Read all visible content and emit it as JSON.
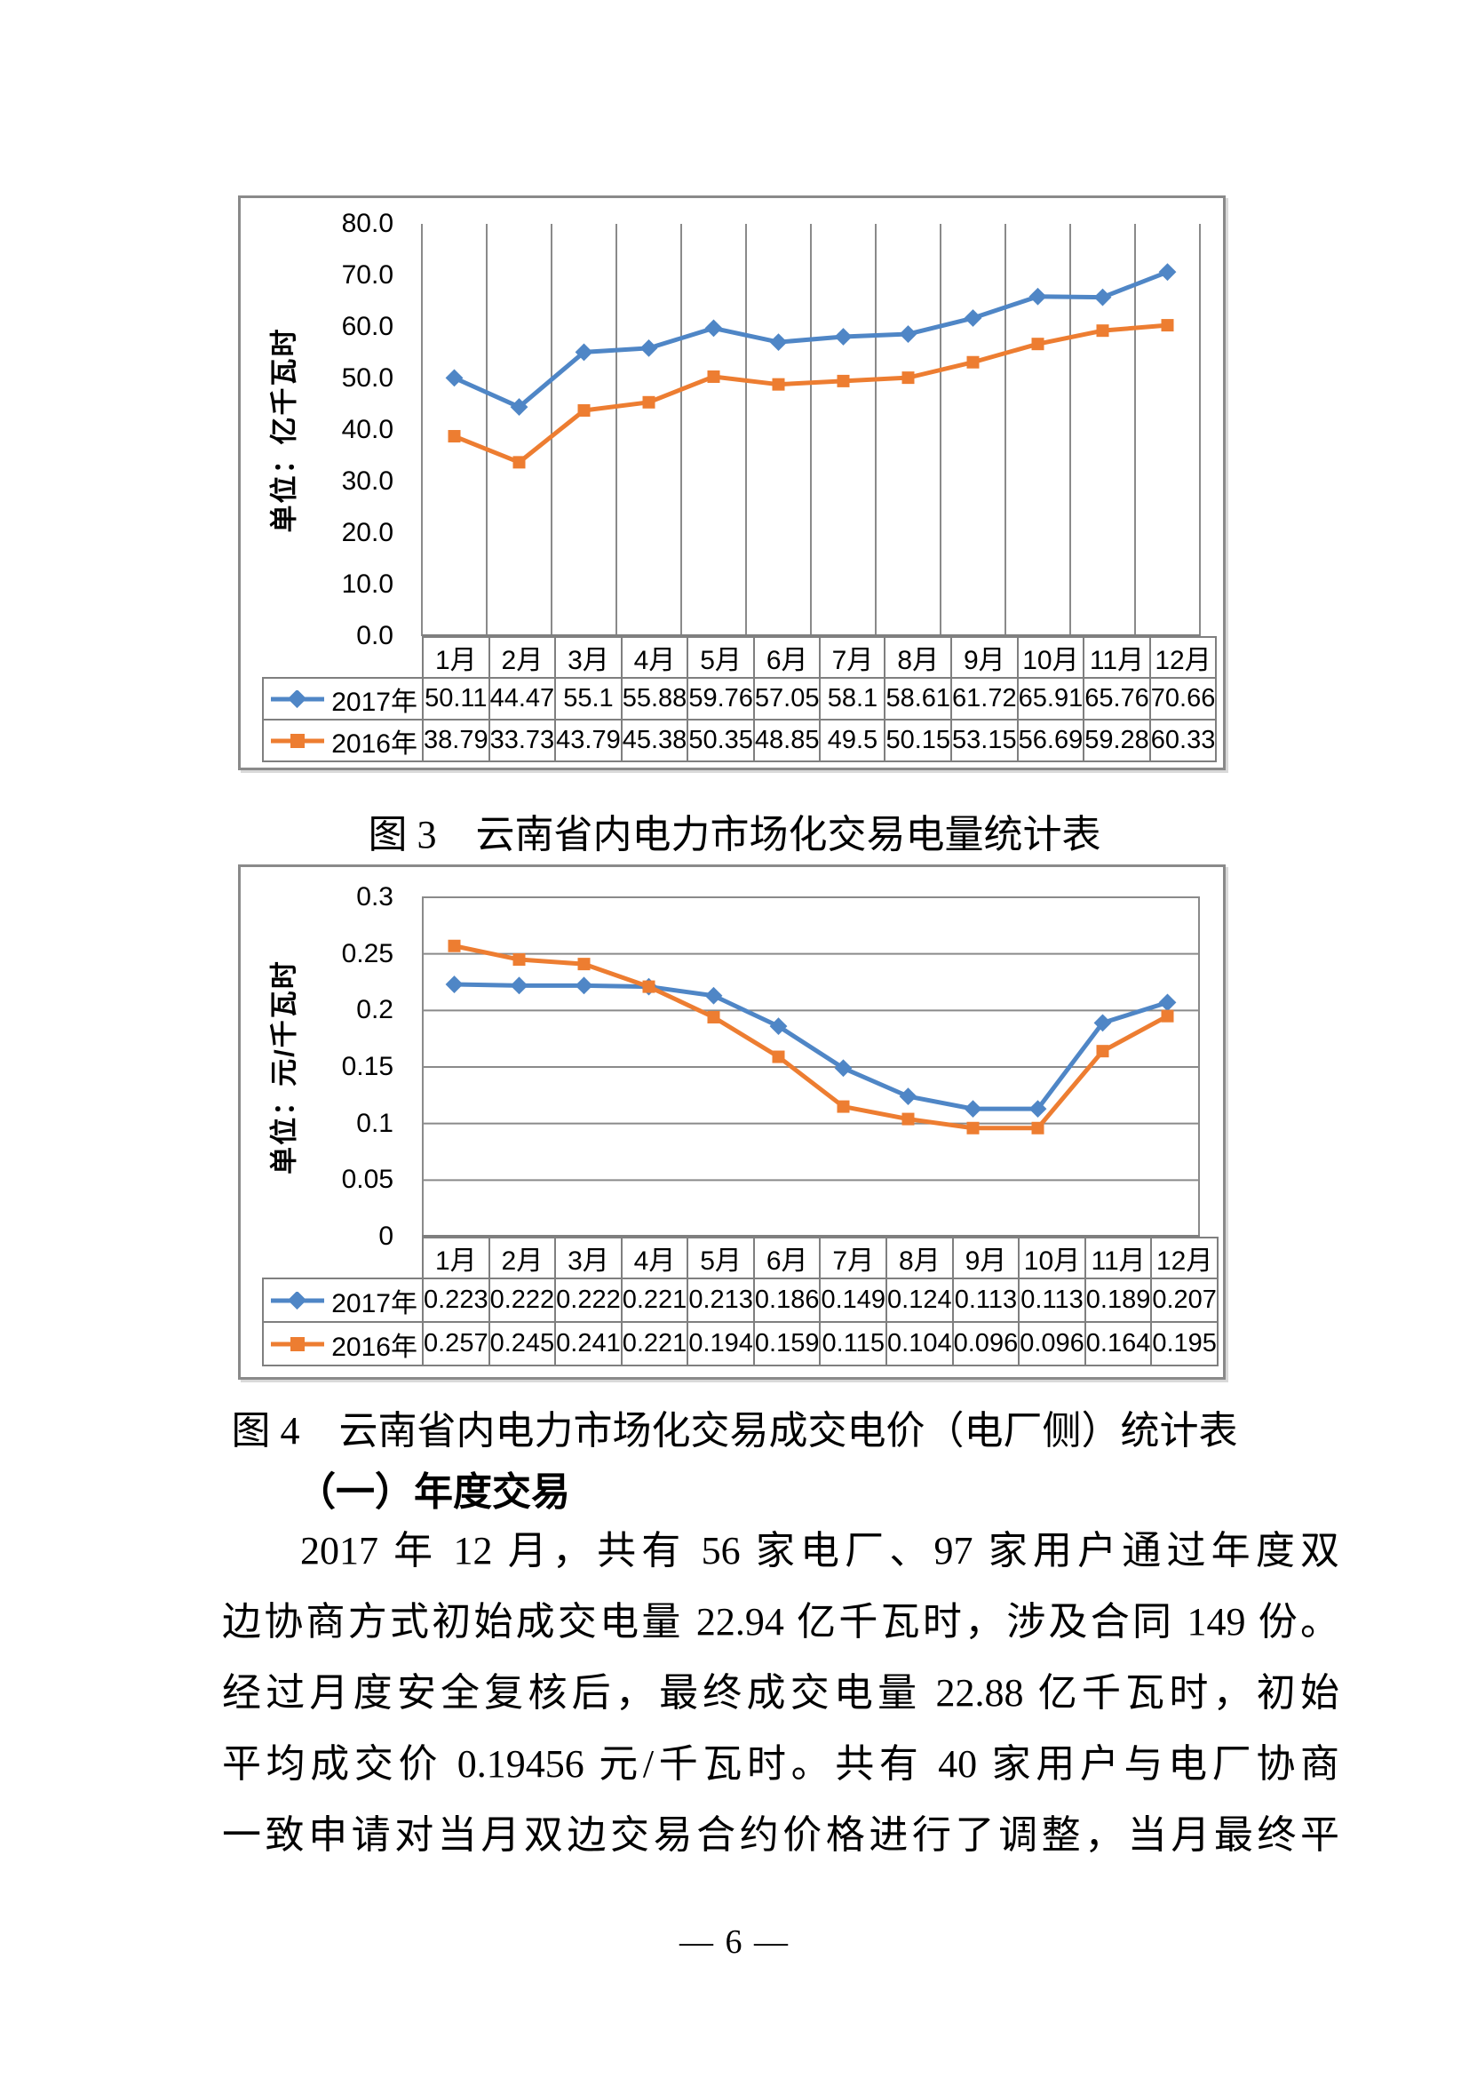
{
  "chart_data": [
    {
      "type": "line",
      "title": "图 3　云南省内电力市场化交易电量统计表",
      "ylabel": "单位：亿千瓦时",
      "categories": [
        "1月",
        "2月",
        "3月",
        "4月",
        "5月",
        "6月",
        "7月",
        "8月",
        "9月",
        "10月",
        "11月",
        "12月"
      ],
      "series": [
        {
          "name": "2017年",
          "color": "#4F86C6",
          "marker": "diamond",
          "values": [
            50.11,
            44.47,
            55.1,
            55.88,
            59.76,
            57.05,
            58.1,
            58.61,
            61.72,
            65.91,
            65.76,
            70.66
          ]
        },
        {
          "name": "2016年",
          "color": "#ED7D31",
          "marker": "square",
          "values": [
            38.79,
            33.73,
            43.79,
            45.38,
            50.35,
            48.85,
            49.5,
            50.15,
            53.15,
            56.69,
            59.28,
            60.33
          ]
        }
      ],
      "ylim": [
        0,
        80
      ],
      "y_ticks": [
        "80.0",
        "70.0",
        "60.0",
        "50.0",
        "40.0",
        "30.0",
        "20.0",
        "10.0",
        "0.0"
      ],
      "grid": "vertical",
      "legend_position": "table-left",
      "data_table_shown": true
    },
    {
      "type": "line",
      "title": "图 4　云南省内电力市场化交易成交电价（电厂侧）统计表",
      "ylabel": "单位：元/千瓦时",
      "categories": [
        "1月",
        "2月",
        "3月",
        "4月",
        "5月",
        "6月",
        "7月",
        "8月",
        "9月",
        "10月",
        "11月",
        "12月"
      ],
      "series": [
        {
          "name": "2017年",
          "color": "#4F86C6",
          "marker": "diamond",
          "values": [
            0.223,
            0.222,
            0.222,
            0.221,
            0.213,
            0.186,
            0.149,
            0.124,
            0.113,
            0.113,
            0.189,
            0.207
          ]
        },
        {
          "name": "2016年",
          "color": "#ED7D31",
          "marker": "square",
          "values": [
            0.257,
            0.245,
            0.241,
            0.221,
            0.194,
            0.159,
            0.115,
            0.104,
            0.096,
            0.096,
            0.164,
            0.195
          ]
        }
      ],
      "ylim": [
        0,
        0.3
      ],
      "y_ticks": [
        "0.3",
        "0.25",
        "0.2",
        "0.15",
        "0.1",
        "0.05",
        "0"
      ],
      "grid": "horizontal",
      "legend_position": "table-left",
      "data_table_shown": true
    }
  ],
  "document": {
    "heading": "（一）年度交易",
    "paragraph_lines": [
      "2017 年 12 月，共有 56 家电厂、97 家用户通过年度双",
      "边协商方式初始成交电量 22.94 亿千瓦时，涉及合同 149 份。",
      "经过月度安全复核后，最终成交电量 22.88 亿千瓦时，初始",
      "平均成交价 0.19456 元/千瓦时。共有 40 家用户与电厂协商",
      "一致申请对当月双边交易合约价格进行了调整，当月最终平"
    ],
    "page_number": "— 6 —"
  },
  "colors": {
    "series_2017": "#4F86C6",
    "series_2016": "#ED7D31",
    "gridline": "#8a8a8a",
    "table_border": "#7f7f7f"
  }
}
